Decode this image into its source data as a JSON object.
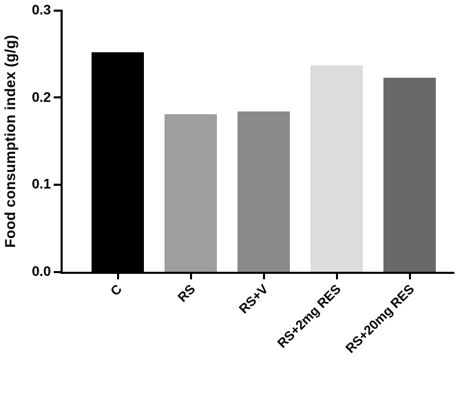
{
  "chart_data": {
    "type": "bar",
    "categories": [
      "C",
      "RS",
      "RS+V",
      "RS+2mg RES",
      "RS+20mg RES"
    ],
    "values": [
      0.252,
      0.181,
      0.184,
      0.237,
      0.223
    ],
    "bar_colors": [
      "#000000",
      "#9e9e9e",
      "#8a8a8a",
      "#dcdcdc",
      "#686868"
    ],
    "xlabel": "",
    "ylabel": "Food consumption index (g/g)",
    "ylim": [
      0,
      0.3
    ],
    "yticks": [
      0.0,
      0.1,
      0.2,
      0.3
    ],
    "ytick_labels": [
      "0.0",
      "0.1",
      "0.2",
      "0.3"
    ],
    "grid": false,
    "legend": "none",
    "axis_color": "#000000",
    "background_color": "#ffffff"
  }
}
